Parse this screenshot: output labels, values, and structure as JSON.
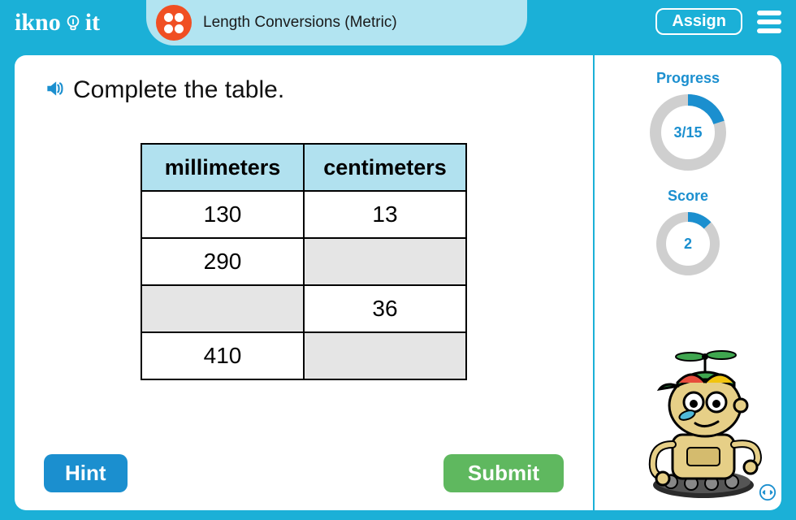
{
  "brand": {
    "name_1": "ikno",
    "name_2": "it"
  },
  "header": {
    "title": "Length Conversions (Metric)",
    "assign_label": "Assign",
    "level_dots": 4
  },
  "question": {
    "prompt": "Complete the table.",
    "audio_icon": "speaker-icon"
  },
  "table": {
    "columns": [
      "millimeters",
      "centimeters"
    ],
    "rows": [
      {
        "mm": {
          "value": "130",
          "editable": false
        },
        "cm": {
          "value": "13",
          "editable": false
        }
      },
      {
        "mm": {
          "value": "290",
          "editable": false
        },
        "cm": {
          "value": "",
          "editable": true
        }
      },
      {
        "mm": {
          "value": "",
          "editable": true
        },
        "cm": {
          "value": "36",
          "editable": false
        }
      },
      {
        "mm": {
          "value": "410",
          "editable": false
        },
        "cm": {
          "value": "",
          "editable": true
        }
      }
    ],
    "header_bg": "#b1e1ef",
    "input_bg": "#e5e5e5",
    "border_color": "#000000"
  },
  "buttons": {
    "hint_label": "Hint",
    "submit_label": "Submit"
  },
  "progress": {
    "label": "Progress",
    "current": 3,
    "total": 15,
    "text": "3/15",
    "ring_color": "#1b8fcf",
    "track_color": "#cfcfcf"
  },
  "score": {
    "label": "Score",
    "value": 2,
    "text": "2",
    "fraction": 0.13,
    "ring_color": "#1b8fcf",
    "track_color": "#cfcfcf"
  },
  "colors": {
    "app_bg": "#1bb0d7",
    "pill_bg": "#b2e4f1",
    "badge_bg": "#f04f23",
    "hint_bg": "#1b8fcf",
    "submit_bg": "#5fb85f",
    "accent": "#1b8fcf"
  }
}
